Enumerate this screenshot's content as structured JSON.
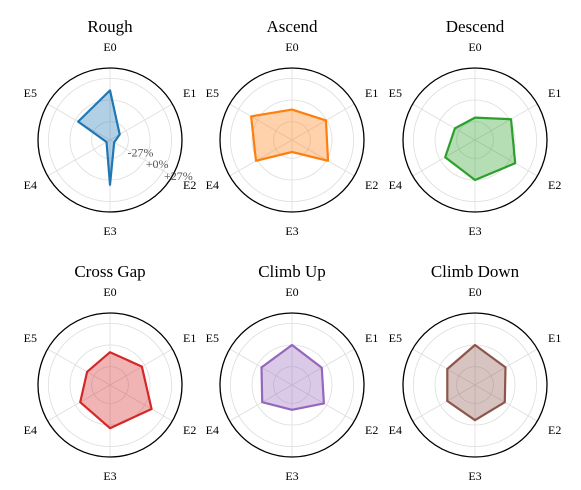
{
  "chart_data": [
    {
      "type": "radar",
      "title": "Rough",
      "categories": [
        "E0",
        "E1",
        "E2",
        "E3",
        "E4",
        "E5"
      ],
      "values": [
        12,
        -36,
        -44,
        6,
        -45,
        -4
      ],
      "color": "#1f77b4",
      "rlim": [
        -50,
        40
      ],
      "rticks": [
        {
          "value": -27,
          "label": "-27%"
        },
        {
          "value": 0,
          "label": "+0%"
        },
        {
          "value": 27,
          "label": "+27%"
        }
      ],
      "show_tick_labels": true
    },
    {
      "type": "radar",
      "title": "Ascend",
      "categories": [
        "E0",
        "E1",
        "E2",
        "E3",
        "E4",
        "E5"
      ],
      "values": [
        -12,
        -1,
        2,
        -35,
        2,
        9
      ],
      "color": "#ff7f0e",
      "rlim": [
        -50,
        40
      ],
      "rticks": [
        {
          "value": -27,
          "label": "-27%"
        },
        {
          "value": 0,
          "label": "+0%"
        },
        {
          "value": 27,
          "label": "+27%"
        }
      ],
      "show_tick_labels": false
    },
    {
      "type": "radar",
      "title": "Descend",
      "categories": [
        "E0",
        "E1",
        "E2",
        "E3",
        "E4",
        "E5"
      ],
      "values": [
        -22,
        2,
        8,
        0,
        -7,
        -21
      ],
      "color": "#2ca02c",
      "rlim": [
        -50,
        40
      ],
      "rticks": [
        {
          "value": -27,
          "label": "-27%"
        },
        {
          "value": 0,
          "label": "+0%"
        },
        {
          "value": 27,
          "label": "+27%"
        }
      ],
      "show_tick_labels": false
    },
    {
      "type": "radar",
      "title": "Cross Gap",
      "categories": [
        "E0",
        "E1",
        "E2",
        "E3",
        "E4",
        "E5"
      ],
      "values": [
        -9,
        -4,
        10,
        4,
        -7,
        -17
      ],
      "color": "#d62728",
      "rlim": [
        -50,
        40
      ],
      "rticks": [
        {
          "value": -27,
          "label": "-27%"
        },
        {
          "value": 0,
          "label": "+0%"
        },
        {
          "value": 27,
          "label": "+27%"
        }
      ],
      "show_tick_labels": false
    },
    {
      "type": "radar",
      "title": "Climb Up",
      "categories": [
        "E0",
        "E1",
        "E2",
        "E3",
        "E4",
        "E5"
      ],
      "values": [
        0,
        -7,
        -4,
        -19,
        -7,
        -6
      ],
      "color": "#9467bd",
      "rlim": [
        -50,
        40
      ],
      "rticks": [
        {
          "value": -27,
          "label": "-27%"
        },
        {
          "value": 0,
          "label": "+0%"
        },
        {
          "value": 27,
          "label": "+27%"
        }
      ],
      "show_tick_labels": false
    },
    {
      "type": "radar",
      "title": "Climb Down",
      "categories": [
        "E0",
        "E1",
        "E2",
        "E3",
        "E4",
        "E5"
      ],
      "values": [
        0,
        -6,
        -7,
        -6,
        -10,
        -10
      ],
      "color": "#8c564b",
      "rlim": [
        -50,
        40
      ],
      "rticks": [
        {
          "value": -27,
          "label": "-27%"
        },
        {
          "value": 0,
          "label": "+0%"
        },
        {
          "value": 27,
          "label": "+27%"
        }
      ],
      "show_tick_labels": false
    }
  ]
}
